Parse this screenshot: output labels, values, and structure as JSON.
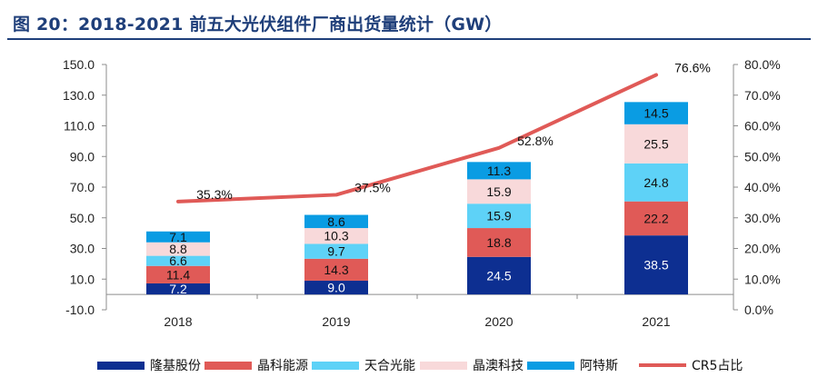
{
  "figure": {
    "title": "图 20：2018-2021 前五大光伏组件厂商出货量统计（GW）"
  },
  "chart_data": {
    "type": "bar",
    "stacked": true,
    "categories": [
      "2018",
      "2019",
      "2020",
      "2021"
    ],
    "series": [
      {
        "name": "隆基股份",
        "color": "#0d2f91",
        "values": [
          7.2,
          9.0,
          24.5,
          38.5
        ],
        "labels": [
          "7.2",
          "9.0",
          "24.5",
          "38.5"
        ],
        "label_color": "#ffffff"
      },
      {
        "name": "晶科能源",
        "color": "#e05a57",
        "values": [
          11.4,
          14.3,
          18.8,
          22.2
        ],
        "labels": [
          "11.4",
          "14.3",
          "18.8",
          "22.2"
        ],
        "label_color": "#111111"
      },
      {
        "name": "天合光能",
        "color": "#5ed2f7",
        "values": [
          6.6,
          9.7,
          15.9,
          24.8
        ],
        "labels": [
          "6.6",
          "9.7",
          "15.9",
          "24.8"
        ],
        "label_color": "#111111"
      },
      {
        "name": "晶澳科技",
        "color": "#f8d9da",
        "values": [
          8.8,
          10.3,
          15.9,
          25.5
        ],
        "labels": [
          "8.8",
          "10.3",
          "15.9",
          "25.5"
        ],
        "label_color": "#111111"
      },
      {
        "name": "阿特斯",
        "color": "#0a9ce3",
        "values": [
          7.1,
          8.6,
          11.3,
          14.5
        ],
        "labels": [
          "7.1",
          "8.6",
          "11.3",
          "14.5"
        ],
        "label_color": "#111111"
      }
    ],
    "line_series": {
      "name": "CR5占比",
      "color": "#e05a57",
      "values": [
        35.3,
        37.5,
        52.8,
        76.6
      ],
      "labels": [
        "35.3%",
        "37.5%",
        "52.8%",
        "76.6%"
      ],
      "axis": "right"
    },
    "y_left": {
      "range": [
        -10,
        150
      ],
      "ticks": [
        -10,
        10,
        30,
        50,
        70,
        90,
        110,
        130,
        150
      ],
      "tick_labels": [
        "-10.0",
        "10.0",
        "30.0",
        "50.0",
        "70.0",
        "90.0",
        "110.0",
        "130.0",
        "150.0"
      ]
    },
    "y_right": {
      "range": [
        0,
        80
      ],
      "ticks": [
        0,
        10,
        20,
        30,
        40,
        50,
        60,
        70,
        80
      ],
      "tick_labels": [
        "0.0%",
        "10.0%",
        "20.0%",
        "30.0%",
        "40.0%",
        "50.0%",
        "60.0%",
        "70.0%",
        "80.0%"
      ]
    },
    "xlabel": "",
    "ylabel": "",
    "grid": false,
    "legend_position": "bottom"
  }
}
